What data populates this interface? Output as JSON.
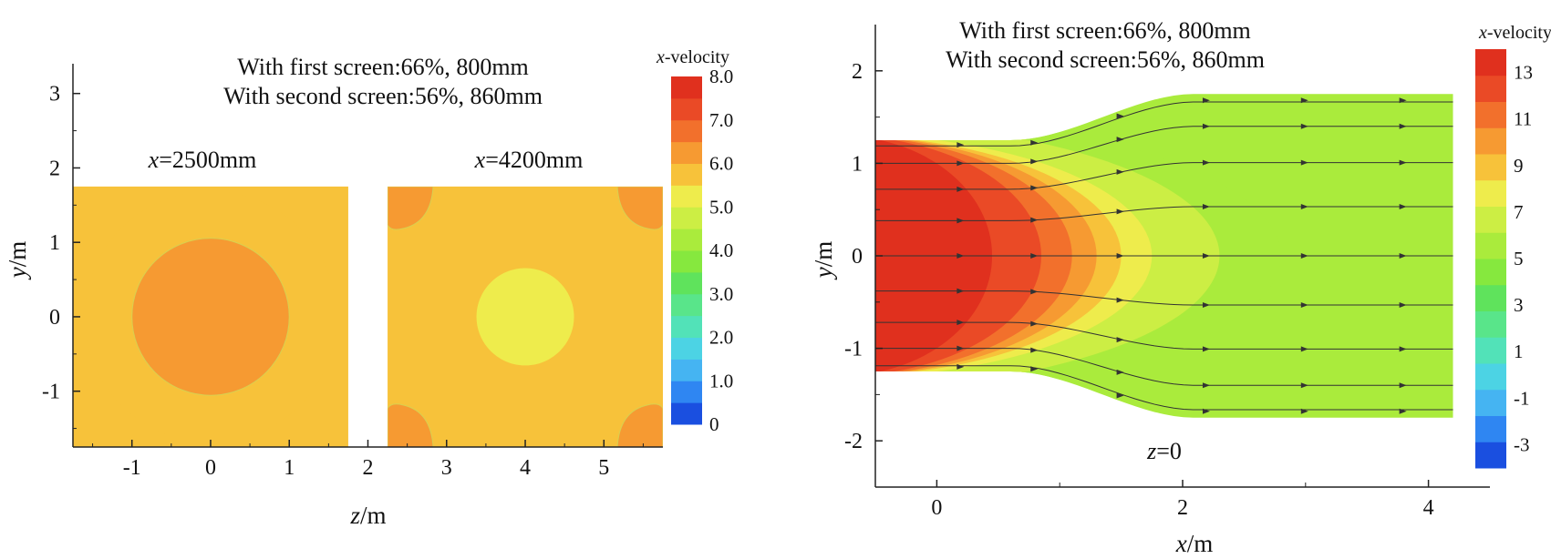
{
  "colors": {
    "c0": "#1a4fe0",
    "c1": "#2f86f2",
    "c2": "#45b4f2",
    "c3": "#4cd3e4",
    "c4": "#52e2b8",
    "c5": "#59e58a",
    "c6": "#5fe35c",
    "c7": "#86e83e",
    "c8": "#aaeb3c",
    "c9": "#ccee44",
    "c10": "#eeec4c",
    "c11": "#f7c23a",
    "c12": "#f69a32",
    "c13": "#f2702c",
    "c14": "#ea4a26",
    "c15": "#e0301e"
  },
  "chart_data": [
    {
      "type": "heatmap",
      "subtype": "contour-cross-sections",
      "title_lines": [
        "With first screen:66%, 800mm",
        "With second screen:56%, 860mm"
      ],
      "xlabel_italic": "z",
      "xlabel_unit": "/m",
      "ylabel_italic": "y",
      "ylabel_unit": "/m",
      "xlim": [
        -1.75,
        5.75
      ],
      "ylim": [
        -1.75,
        3.4
      ],
      "xticks": [
        -1,
        0,
        1,
        2,
        3,
        4,
        5
      ],
      "yticks": [
        -1,
        0,
        1,
        2,
        3
      ],
      "panels": [
        {
          "label_italic": "x",
          "label_rest": "=2500mm",
          "z_range": [
            -1.75,
            1.75
          ],
          "y_range": [
            -1.75,
            1.75
          ],
          "center": [
            0,
            0
          ],
          "field": {
            "background": 5.5,
            "inner_ring": 5.8,
            "core": 6.1,
            "core_radius": 1.0,
            "ring_radius": 1.6
          }
        },
        {
          "label_italic": "x",
          "label_rest": "=4200mm",
          "z_range": [
            2.25,
            5.75
          ],
          "y_range": [
            -1.75,
            1.75
          ],
          "center": [
            4,
            0
          ],
          "field": {
            "background": 5.6,
            "center_low": 5.2,
            "center_radius": 0.62,
            "corner_high": 6.1
          }
        }
      ],
      "colorbar": {
        "title_italic": "x",
        "title_rest": "-velocity",
        "min": 0,
        "max": 8.0,
        "levels": 16,
        "tick_labels": [
          "8.0",
          "7.0",
          "6.0",
          "5.0",
          "4.0",
          "3.0",
          "2.0",
          "1.0",
          "0"
        ],
        "tick_values": [
          8,
          7,
          6,
          5,
          4,
          3,
          2,
          1,
          0
        ]
      }
    },
    {
      "type": "heatmap",
      "subtype": "contour-with-streamlines",
      "title_lines": [
        "With first screen:66%, 800mm",
        "With second screen:56%, 860mm"
      ],
      "annotation_italic": "z",
      "annotation_rest": "=0",
      "xlabel_italic": "x",
      "xlabel_unit": "/m",
      "ylabel_italic": "y",
      "ylabel_unit": "/m",
      "xlim": [
        -0.5,
        4.5
      ],
      "ylim": [
        -2.5,
        2.5
      ],
      "xticks": [
        0,
        2,
        4
      ],
      "yticks": [
        -2,
        -1,
        0,
        1,
        2
      ],
      "domain": {
        "x_start": -0.5,
        "x_end": 4.2,
        "inlet_half_height": 1.25,
        "outlet_half_height": 1.75,
        "transition": [
          0.6,
          2.1
        ]
      },
      "contour_bands": [
        {
          "x_center": 0.45,
          "value": 13
        },
        {
          "x_center": 0.85,
          "value": 12
        },
        {
          "x_center": 1.1,
          "value": 11
        },
        {
          "x_center": 1.3,
          "value": 10
        },
        {
          "x_center": 1.5,
          "value": 9
        },
        {
          "x_center": 1.75,
          "value": 8
        },
        {
          "x_center": 2.3,
          "value": 7
        },
        {
          "x_center": 2.8,
          "value": 6
        }
      ],
      "background_value": 5.6,
      "streamline_inlet_y": [
        1.2,
        1.0,
        0.72,
        0.38,
        0.0,
        -0.38,
        -0.72,
        -1.0,
        -1.2
      ],
      "colorbar": {
        "title_italic": "x",
        "title_rest": "-velocity",
        "min": -4,
        "max": 14,
        "levels": 16,
        "tick_labels": [
          "13",
          "11",
          "9",
          "7",
          "5",
          "3",
          "1",
          "-1",
          "-3"
        ],
        "tick_values": [
          13,
          11,
          9,
          7,
          5,
          3,
          1,
          -1,
          -3
        ]
      }
    }
  ]
}
